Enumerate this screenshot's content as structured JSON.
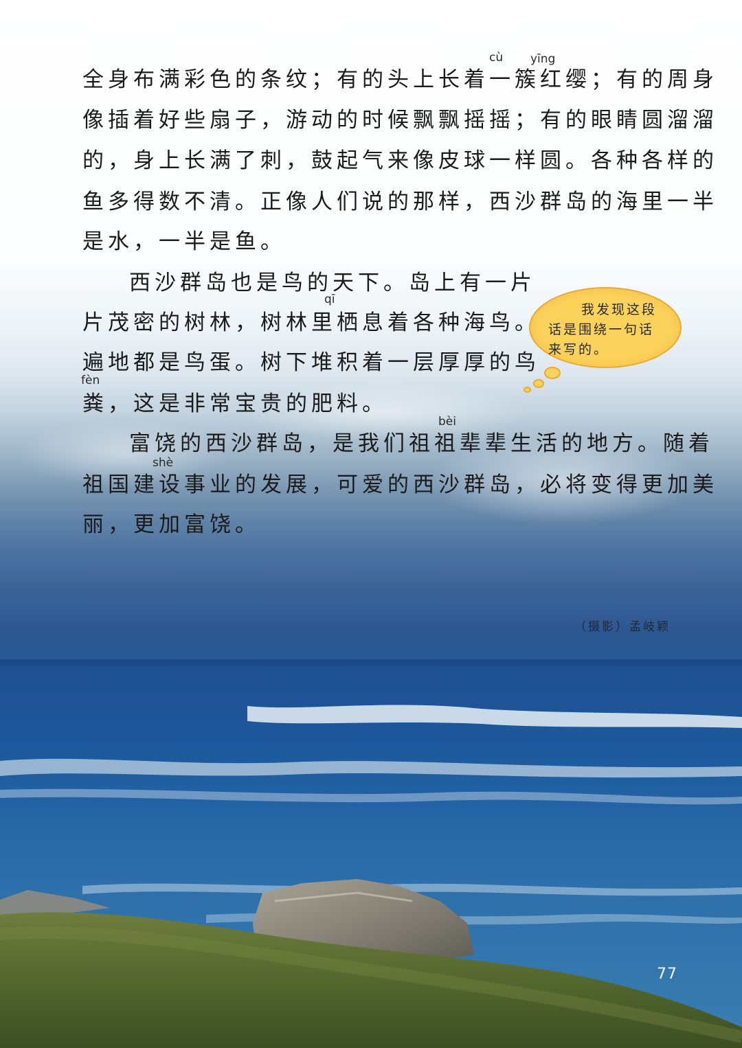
{
  "paragraphs": {
    "p1": {
      "line1": "全身布满彩色的条纹；有的头上长着一簇红缨；有的周身",
      "line2": "像插着好些扇子，游动的时候飘飘摇摇；有的眼睛圆溜溜",
      "line3": "的，身上长满了刺，鼓起气来像皮球一样圆。各种各样的",
      "line4": "鱼多得数不清。正像人们说的那样，西沙群岛的海里一半",
      "line5": "是水，一半是鱼。"
    },
    "p2": {
      "line1": "西沙群岛也是鸟的天下。岛上有一片",
      "line2": "片茂密的树林，树林里栖息着各种海鸟。",
      "line3": "遍地都是鸟蛋。树下堆积着一层厚厚的鸟",
      "line4": "粪，这是非常宝贵的肥料。"
    },
    "p3": {
      "line1": "富饶的西沙群岛，是我们祖祖辈辈生活的地方。随着",
      "line2": "祖国建设事业的发展，可爱的西沙群岛，必将变得更加美",
      "line3": "丽，更加富饶。"
    }
  },
  "pinyin": {
    "cu": "cù",
    "ying": "yīng",
    "qi": "qī",
    "fen": "fèn",
    "bei": "bèi",
    "she": "shè"
  },
  "thought_bubble": {
    "line1": "我发现这段",
    "line2": "话是围绕一句话",
    "line3": "来写的。",
    "color": "#fbd35c"
  },
  "photo_credit": "（摄影）孟岐颖",
  "page_number": "77"
}
